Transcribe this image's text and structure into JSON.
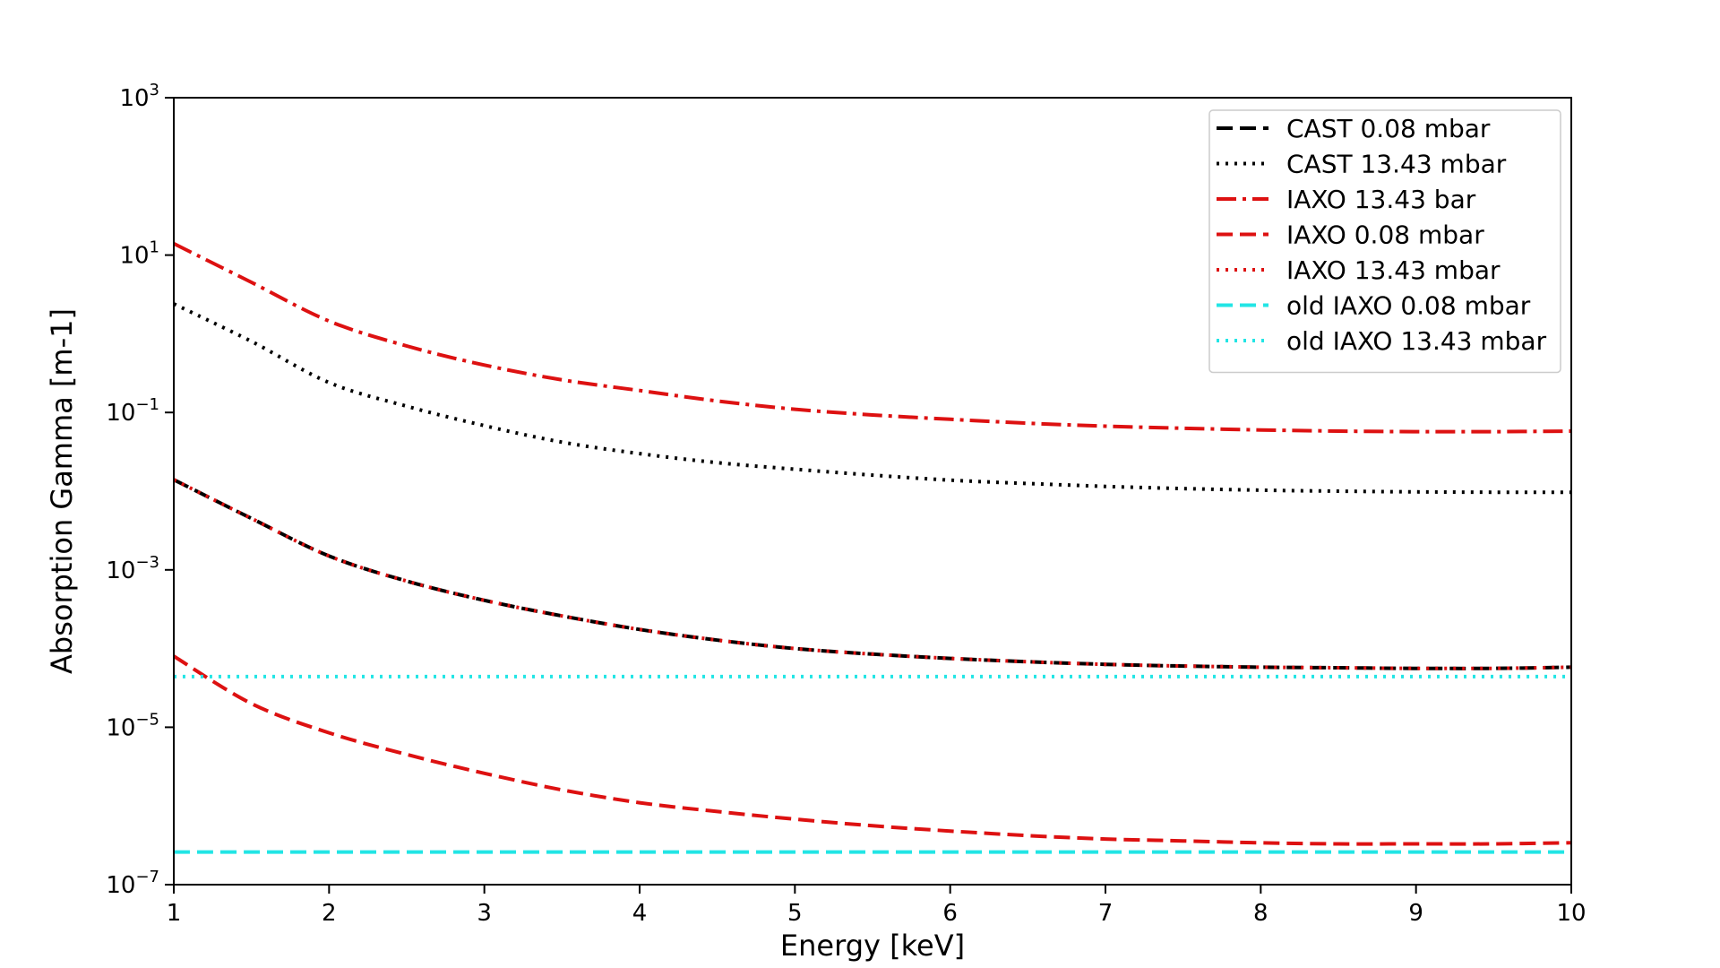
{
  "chart_data": {
    "type": "line",
    "xlabel": "Energy [keV]",
    "ylabel": "Absorption Gamma [m-1]",
    "xlim": [
      1,
      10
    ],
    "ylim": [
      1e-07,
      1000
    ],
    "yscale": "log",
    "x_ticks": [
      "1",
      "2",
      "3",
      "4",
      "5",
      "6",
      "7",
      "8",
      "9",
      "10"
    ],
    "y_ticks": [
      {
        "base": "10",
        "exp": "3",
        "value": 1000
      },
      {
        "base": "10",
        "exp": "1",
        "value": 10
      },
      {
        "base": "10",
        "exp": "−1",
        "value": 0.1
      },
      {
        "base": "10",
        "exp": "−3",
        "value": 0.001
      },
      {
        "base": "10",
        "exp": "−5",
        "value": 1e-05
      },
      {
        "base": "10",
        "exp": "−7",
        "value": 1e-07
      }
    ],
    "legend_position": "top-right",
    "x": [
      1,
      1.5,
      2,
      2.5,
      3,
      3.5,
      4,
      4.5,
      5,
      5.5,
      6,
      6.5,
      7,
      7.5,
      8,
      8.5,
      9,
      9.5,
      10
    ],
    "series": [
      {
        "name": "CAST 0.08 mbar",
        "color": "#000000",
        "style": "dashed",
        "values": [
          0.014,
          0.0045,
          0.0015,
          0.00072,
          0.00041,
          0.00026,
          0.000175,
          0.000128,
          0.0001,
          8.5e-05,
          7.5e-05,
          6.8e-05,
          6.3e-05,
          6e-05,
          5.8e-05,
          5.7e-05,
          5.6e-05,
          5.6e-05,
          5.8e-05
        ]
      },
      {
        "name": "CAST 13.43 mbar",
        "color": "#000000",
        "style": "dotted",
        "values": [
          2.4,
          0.8,
          0.24,
          0.12,
          0.068,
          0.042,
          0.03,
          0.023,
          0.019,
          0.016,
          0.0138,
          0.0125,
          0.0115,
          0.0108,
          0.0103,
          0.01,
          0.0098,
          0.0097,
          0.0097
        ]
      },
      {
        "name": "IAXO 13.43 bar",
        "color": "#dd1111",
        "style": "dashdot",
        "values": [
          14,
          4.5,
          1.45,
          0.7,
          0.4,
          0.26,
          0.19,
          0.14,
          0.11,
          0.093,
          0.082,
          0.073,
          0.067,
          0.063,
          0.06,
          0.058,
          0.057,
          0.057,
          0.058
        ]
      },
      {
        "name": "IAXO 0.08 mbar",
        "color": "#dd1111",
        "style": "dashed",
        "values": [
          8e-05,
          2e-05,
          8.5e-06,
          4.5e-06,
          2.6e-06,
          1.6e-06,
          1.1e-06,
          8.5e-07,
          6.8e-07,
          5.6e-07,
          4.8e-07,
          4.2e-07,
          3.8e-07,
          3.6e-07,
          3.4e-07,
          3.3e-07,
          3.3e-07,
          3.3e-07,
          3.4e-07
        ]
      },
      {
        "name": "IAXO 13.43 mbar",
        "color": "#dd1111",
        "style": "dotted",
        "values": [
          0.014,
          0.0045,
          0.0015,
          0.00072,
          0.00041,
          0.00026,
          0.000175,
          0.000128,
          0.0001,
          8.5e-05,
          7.5e-05,
          6.8e-05,
          6.3e-05,
          6e-05,
          5.8e-05,
          5.7e-05,
          5.6e-05,
          5.6e-05,
          5.8e-05
        ]
      },
      {
        "name": "old IAXO 0.08 mbar",
        "color": "#22e5e5",
        "style": "dashed",
        "values": [
          2.6e-07,
          2.6e-07,
          2.6e-07,
          2.6e-07,
          2.6e-07,
          2.6e-07,
          2.6e-07,
          2.6e-07,
          2.6e-07,
          2.6e-07,
          2.6e-07,
          2.6e-07,
          2.6e-07,
          2.6e-07,
          2.6e-07,
          2.6e-07,
          2.6e-07,
          2.6e-07,
          2.6e-07
        ]
      },
      {
        "name": "old IAXO 13.43 mbar",
        "color": "#22e5e5",
        "style": "dotted",
        "values": [
          4.4e-05,
          4.4e-05,
          4.4e-05,
          4.4e-05,
          4.4e-05,
          4.4e-05,
          4.4e-05,
          4.4e-05,
          4.4e-05,
          4.4e-05,
          4.4e-05,
          4.4e-05,
          4.4e-05,
          4.4e-05,
          4.4e-05,
          4.4e-05,
          4.4e-05,
          4.4e-05,
          4.4e-05
        ]
      }
    ]
  }
}
